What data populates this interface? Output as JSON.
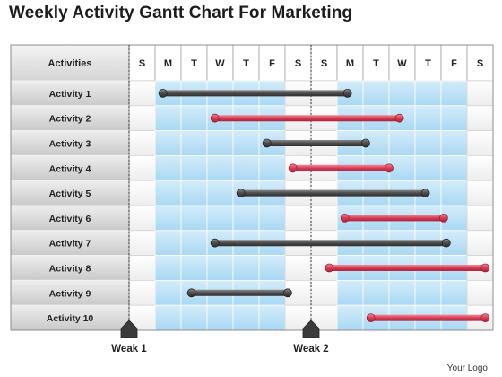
{
  "title": "Weekly Activity Gantt Chart For Marketing",
  "logo": "Your Logo",
  "chart_data": {
    "type": "gantt",
    "title": "Weekly Activity Gantt Chart For Marketing",
    "header_label": "Activities",
    "days": [
      "S",
      "M",
      "T",
      "W",
      "T",
      "F",
      "S",
      "S",
      "M",
      "T",
      "W",
      "T",
      "F",
      "S"
    ],
    "weekend_columns": [
      0,
      6,
      7,
      13
    ],
    "tasks": [
      {
        "name": "Activity 1",
        "start": 1.3,
        "end": 8.4,
        "color": "#5a5a5a"
      },
      {
        "name": "Activity 2",
        "start": 3.3,
        "end": 10.4,
        "color": "#d9475c"
      },
      {
        "name": "Activity 3",
        "start": 5.3,
        "end": 9.1,
        "color": "#5a5a5a"
      },
      {
        "name": "Activity 4",
        "start": 6.3,
        "end": 10.0,
        "color": "#d9475c"
      },
      {
        "name": "Activity 5",
        "start": 4.3,
        "end": 11.4,
        "color": "#5a5a5a"
      },
      {
        "name": "Activity 6",
        "start": 8.3,
        "end": 12.1,
        "color": "#d9475c"
      },
      {
        "name": "Activity 7",
        "start": 3.3,
        "end": 12.2,
        "color": "#5a5a5a"
      },
      {
        "name": "Activity 8",
        "start": 7.7,
        "end": 13.7,
        "color": "#d9475c"
      },
      {
        "name": "Activity 9",
        "start": 2.4,
        "end": 6.1,
        "color": "#5a5a5a"
      },
      {
        "name": "Activity 10",
        "start": 9.3,
        "end": 13.7,
        "color": "#d9475c"
      }
    ],
    "milestones": [
      {
        "label": "Weak 1",
        "at": 0
      },
      {
        "label": "Weak 2",
        "at": 7
      }
    ],
    "colors": {
      "weekday_fill": "#bfe3f7",
      "weekend_fill": "#ffffff",
      "label_fill": "#d6d6d6",
      "grid": "#9aa3aa",
      "header_fill": "#e4e4e4"
    }
  }
}
